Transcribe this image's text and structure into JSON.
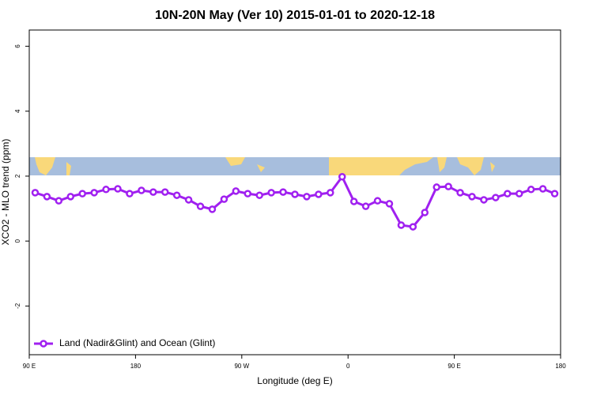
{
  "chart_data": {
    "type": "line",
    "title": "10N-20N May (Ver 10)   2015-01-01 to 2020-12-18",
    "xlabel": "Longitude (deg E)",
    "ylabel": "XCO2 - MLO trend (ppm)",
    "xlim": [
      90,
      540
    ],
    "ylim": [
      -3.5,
      6.5
    ],
    "xticks": [
      {
        "value": 90,
        "label": "90 E"
      },
      180,
      {
        "value": 270,
        "label": "90 W"
      },
      {
        "value": 360,
        "label": "0"
      },
      {
        "value": 450,
        "label": "90 E"
      },
      {
        "value": 540,
        "label": "180"
      }
    ],
    "yticks": [
      -2,
      0,
      2,
      4,
      6
    ],
    "legend": "bottomleft",
    "x": [
      95,
      105,
      115,
      125,
      135,
      145,
      155,
      165,
      175,
      185,
      195,
      205,
      215,
      225,
      235,
      245,
      255,
      265,
      275,
      285,
      295,
      305,
      315,
      325,
      335,
      345,
      355,
      365,
      375,
      385,
      395,
      405,
      415,
      425,
      435,
      445,
      455,
      465,
      475,
      485,
      495,
      505,
      515,
      525,
      535
    ],
    "series": [
      {
        "name": "Land (Nadir&Glint) and Ocean (Glint)",
        "color": "#a020f0",
        "values": [
          1.49,
          1.37,
          1.24,
          1.37,
          1.46,
          1.49,
          1.59,
          1.61,
          1.46,
          1.56,
          1.51,
          1.51,
          1.41,
          1.27,
          1.07,
          0.98,
          1.29,
          1.54,
          1.46,
          1.41,
          1.49,
          1.51,
          1.44,
          1.37,
          1.44,
          1.49,
          1.98,
          1.22,
          1.07,
          1.24,
          1.15,
          0.49,
          0.44,
          0.88,
          1.66,
          1.68,
          1.49,
          1.37,
          1.27,
          1.34,
          1.46,
          1.46,
          1.59,
          1.61,
          1.46
        ]
      }
    ]
  }
}
